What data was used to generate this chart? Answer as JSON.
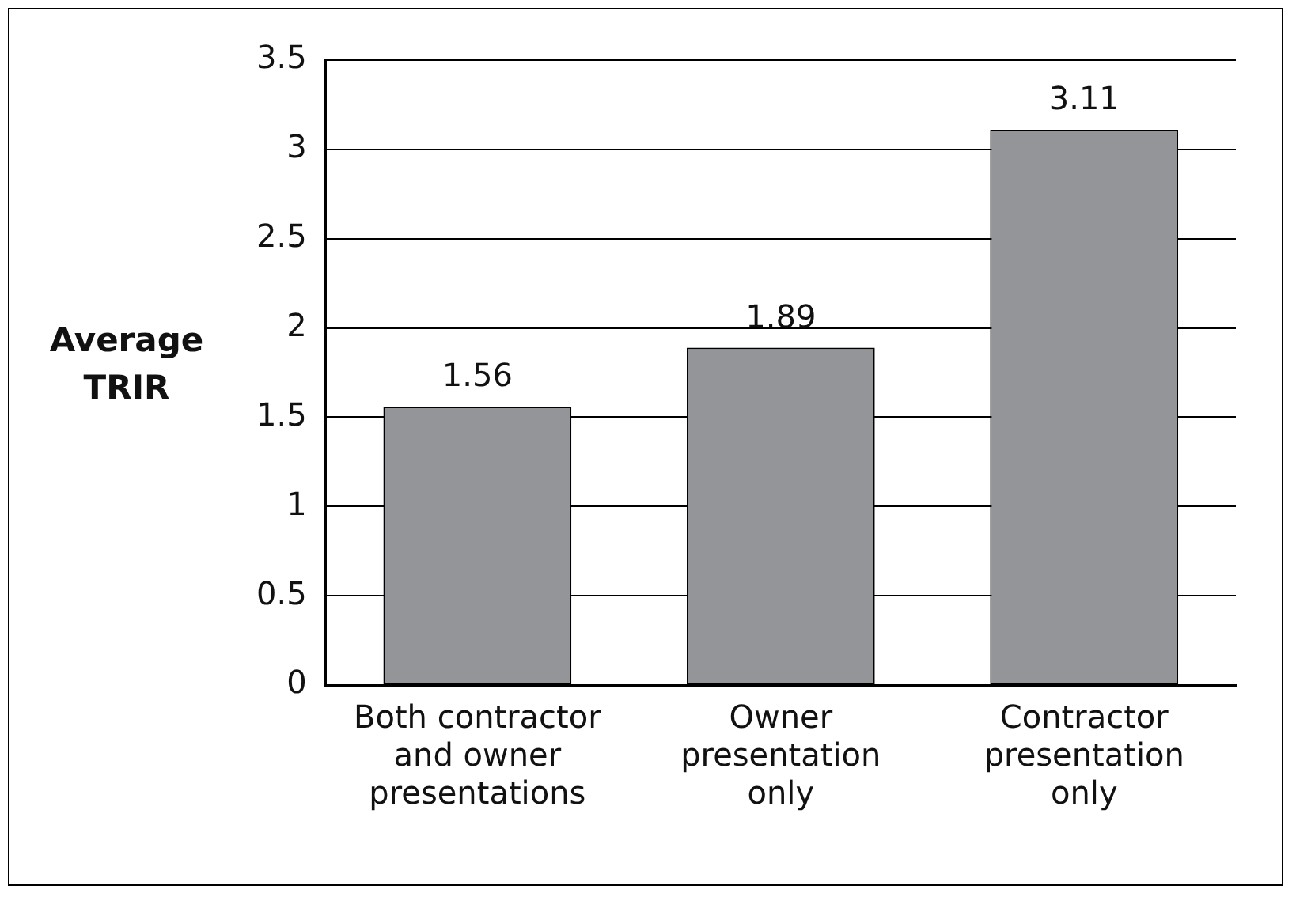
{
  "chart_data": {
    "type": "bar",
    "ylabel": "Average\nTRIR",
    "categories": [
      "Both contractor\nand owner\npresentations",
      "Owner\npresentation\nonly",
      "Contractor\npresentation\nonly"
    ],
    "values": [
      1.56,
      1.89,
      3.11
    ],
    "color": "#939598",
    "ylim": [
      0,
      3.5
    ],
    "yticks": [
      0,
      0.5,
      1,
      1.5,
      2,
      2.5,
      3,
      3.5
    ],
    "grid": "y",
    "data_labels": true
  }
}
